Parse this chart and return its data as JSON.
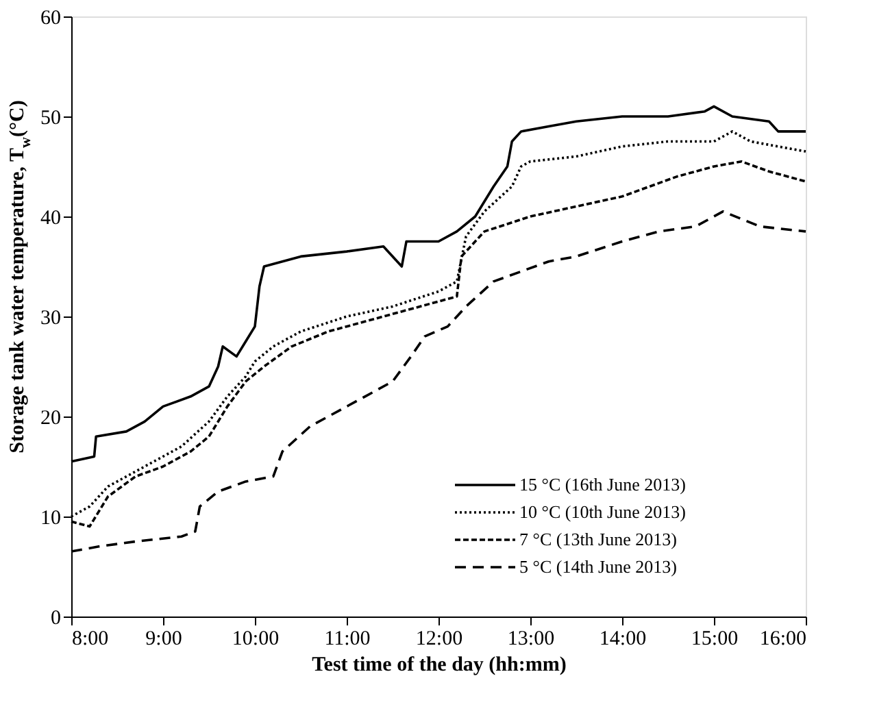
{
  "chart_data": {
    "type": "line",
    "xlabel": "Test time of the day (hh:mm)",
    "ylabel": "Storage tank water temperature, T$_{w}$(°C)",
    "xlim": [
      8,
      16
    ],
    "xticks": [
      {
        "value": 8,
        "label": "8:00"
      },
      {
        "value": 9,
        "label": "9:00"
      },
      {
        "value": 10,
        "label": "10:00"
      },
      {
        "value": 11,
        "label": "11:00"
      },
      {
        "value": 12,
        "label": "12:00"
      },
      {
        "value": 13,
        "label": "13:00"
      },
      {
        "value": 14,
        "label": "14:00"
      },
      {
        "value": 15,
        "label": "15:00"
      },
      {
        "value": 16,
        "label": "16:00"
      }
    ],
    "ylim": [
      0,
      60
    ],
    "yticks": [
      0,
      10,
      20,
      30,
      40,
      50,
      60
    ],
    "grid": false,
    "legend": "bottom right",
    "series": [
      {
        "name": "15 °C (16th June 2013)",
        "color": "#000000",
        "line_style": "solid",
        "x": [
          8.0,
          8.25,
          8.27,
          8.6,
          8.8,
          9.0,
          9.3,
          9.5,
          9.6,
          9.65,
          9.8,
          9.9,
          10.0,
          10.05,
          10.1,
          10.3,
          10.5,
          11.0,
          11.4,
          11.6,
          11.65,
          12.0,
          12.2,
          12.4,
          12.6,
          12.75,
          12.8,
          12.9,
          13.2,
          13.5,
          14.0,
          14.5,
          14.9,
          15.0,
          15.2,
          15.6,
          15.7,
          16.0
        ],
        "values": [
          15.5,
          16,
          18,
          18.5,
          19.5,
          21,
          22,
          23,
          25,
          27,
          26,
          27.5,
          29,
          33,
          35,
          35.5,
          36,
          36.5,
          37,
          35,
          37.5,
          37.5,
          38.5,
          40,
          43,
          45,
          47.5,
          48.5,
          49,
          49.5,
          50,
          50,
          50.5,
          51,
          50,
          49.5,
          48.5,
          48.5
        ]
      },
      {
        "name": "10 °C (10th June 2013)",
        "color": "#000000",
        "line_style": "dotted",
        "x": [
          8.0,
          8.2,
          8.4,
          8.6,
          8.9,
          9.2,
          9.5,
          9.7,
          9.9,
          10.0,
          10.2,
          10.5,
          11.0,
          11.5,
          12.0,
          12.2,
          12.3,
          12.5,
          12.8,
          12.9,
          13.0,
          13.5,
          14.0,
          14.5,
          15.0,
          15.2,
          15.4,
          15.7,
          16.0
        ],
        "values": [
          10,
          11,
          13,
          14,
          15.5,
          17,
          19.5,
          22,
          24,
          25.5,
          27,
          28.5,
          30,
          31,
          32.5,
          33.5,
          38,
          40.5,
          43,
          45,
          45.5,
          46,
          47,
          47.5,
          47.5,
          48.5,
          47.5,
          47,
          46.5
        ]
      },
      {
        "name": "7 °C (13th June 2013)",
        "color": "#000000",
        "line_style": "dashed",
        "x": [
          8.0,
          8.2,
          8.4,
          8.7,
          9.0,
          9.3,
          9.5,
          9.7,
          9.9,
          10.1,
          10.4,
          10.8,
          11.2,
          11.6,
          12.0,
          12.2,
          12.25,
          12.5,
          13.0,
          13.5,
          14.0,
          14.3,
          14.6,
          15.0,
          15.3,
          15.6,
          16.0
        ],
        "values": [
          9.5,
          9,
          12,
          14,
          15,
          16.5,
          18,
          21,
          23.5,
          25,
          27,
          28.5,
          29.5,
          30.5,
          31.5,
          32,
          36,
          38.5,
          40,
          41,
          42,
          43,
          44,
          45,
          45.5,
          44.5,
          43.5
        ]
      },
      {
        "name": "5 °C (14th June 2013)",
        "color": "#000000",
        "line_style": "dashed",
        "x": [
          8.0,
          8.3,
          8.7,
          9.2,
          9.35,
          9.4,
          9.6,
          9.9,
          10.2,
          10.3,
          10.6,
          10.8,
          11.2,
          11.5,
          11.7,
          11.85,
          12.1,
          12.3,
          12.6,
          12.9,
          13.2,
          13.5,
          14.0,
          14.4,
          14.8,
          15.1,
          15.5,
          16.0
        ],
        "values": [
          6.5,
          7,
          7.5,
          8,
          8.5,
          11,
          12.5,
          13.5,
          14,
          16.5,
          19,
          20,
          22,
          23.5,
          26,
          28,
          29,
          31,
          33.5,
          34.5,
          35.5,
          36,
          37.5,
          38.5,
          39,
          40.5,
          39,
          38.5
        ]
      }
    ]
  }
}
